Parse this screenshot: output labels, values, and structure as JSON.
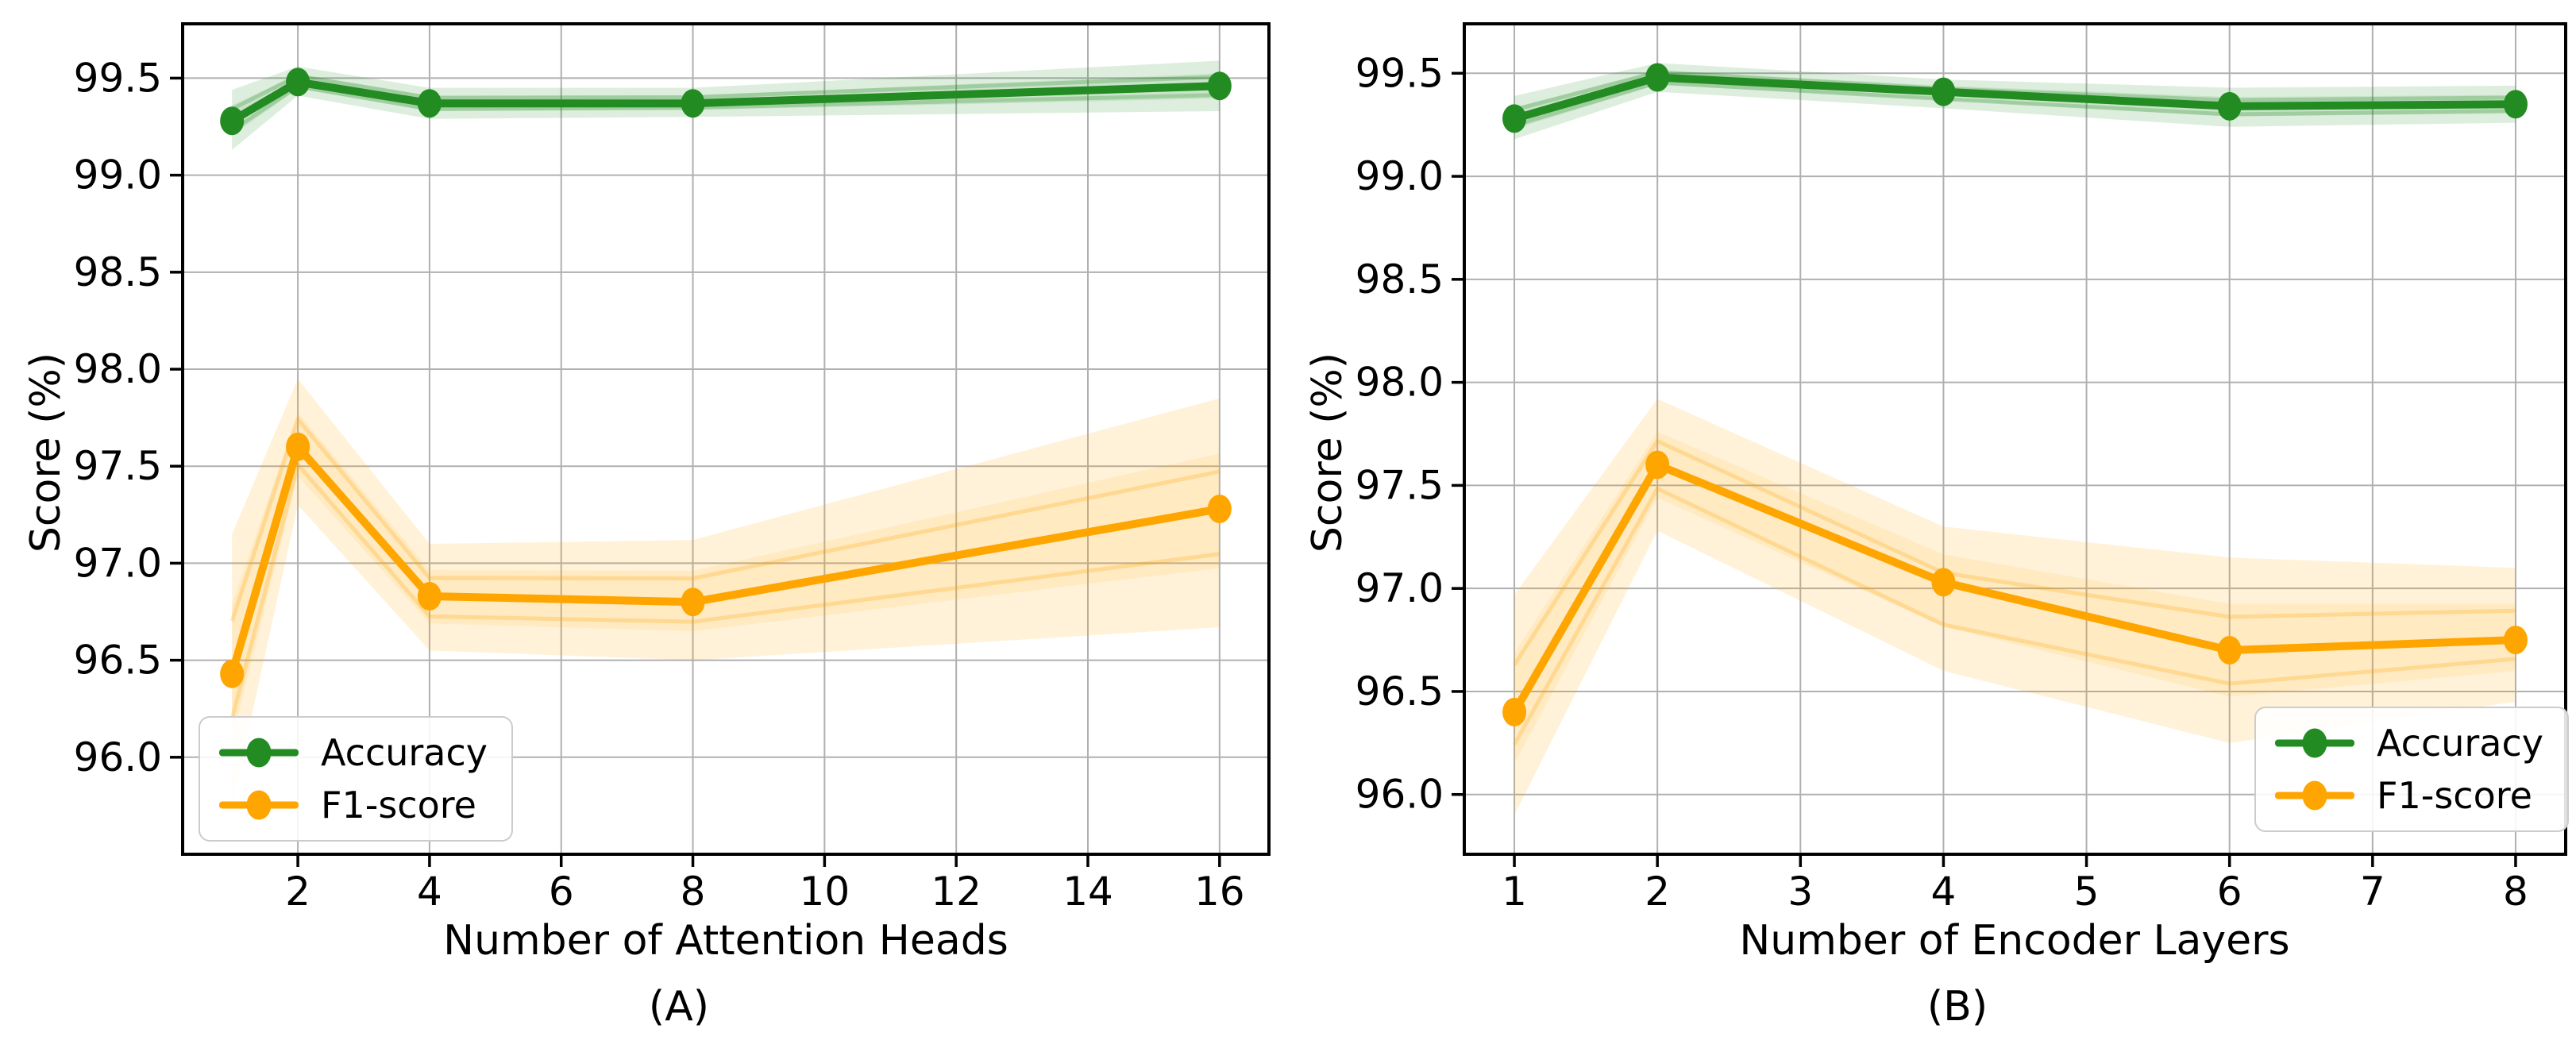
{
  "figure": {
    "background": "#ffffff",
    "grid_color": "#b0b0b0",
    "spine_color": "#000000",
    "text_color": "#000000"
  },
  "chart_data": [
    {
      "id": "A",
      "type": "line",
      "title": "",
      "xlabel": "Number of Attention Heads",
      "ylabel": "Score (%)",
      "caption": "(A)",
      "grid": true,
      "legend_position": "lower-left",
      "xlim": [
        0.25,
        16.75
      ],
      "ylim": [
        95.5,
        99.78
      ],
      "xticks": [
        2,
        4,
        6,
        8,
        10,
        12,
        14,
        16
      ],
      "yticks": [
        96.0,
        96.5,
        97.0,
        97.5,
        98.0,
        98.5,
        99.0,
        99.5
      ],
      "x": [
        1,
        2,
        4,
        8,
        16
      ],
      "series": [
        {
          "name": "Accuracy",
          "color": "#228B22",
          "y": [
            99.28,
            99.48,
            99.37,
            99.37,
            99.46
          ],
          "band_low": [
            99.13,
            99.41,
            99.29,
            99.3,
            99.33
          ],
          "band_high": [
            99.44,
            99.56,
            99.45,
            99.45,
            99.59
          ]
        },
        {
          "name": "F1-score",
          "color": "#FFA500",
          "y": [
            96.43,
            97.6,
            96.83,
            96.8,
            97.28
          ],
          "band_low": [
            95.75,
            97.3,
            96.55,
            96.5,
            96.67
          ],
          "band_high": [
            97.15,
            97.95,
            97.1,
            97.12,
            97.85
          ]
        }
      ]
    },
    {
      "id": "B",
      "type": "line",
      "title": "",
      "xlabel": "Number of Encoder Layers",
      "ylabel": "Score (%)",
      "caption": "(B)",
      "grid": true,
      "legend_position": "lower-right",
      "xlim": [
        0.65,
        8.35
      ],
      "ylim": [
        95.71,
        99.74
      ],
      "xticks": [
        1,
        2,
        3,
        4,
        5,
        6,
        7,
        8
      ],
      "yticks": [
        96.0,
        96.5,
        97.0,
        97.5,
        98.0,
        98.5,
        99.0,
        99.5
      ],
      "x": [
        1,
        2,
        4,
        6,
        8
      ],
      "series": [
        {
          "name": "Accuracy",
          "color": "#228B22",
          "y": [
            99.28,
            99.48,
            99.41,
            99.34,
            99.35
          ],
          "band_low": [
            99.18,
            99.41,
            99.33,
            99.24,
            99.26
          ],
          "band_high": [
            99.39,
            99.55,
            99.47,
            99.43,
            99.44
          ]
        },
        {
          "name": "F1-score",
          "color": "#FFA500",
          "y": [
            96.4,
            97.6,
            97.03,
            96.7,
            96.75
          ],
          "band_low": [
            95.9,
            97.28,
            96.6,
            96.25,
            96.45
          ],
          "band_high": [
            96.97,
            97.92,
            97.3,
            97.15,
            97.1
          ]
        }
      ]
    }
  ]
}
